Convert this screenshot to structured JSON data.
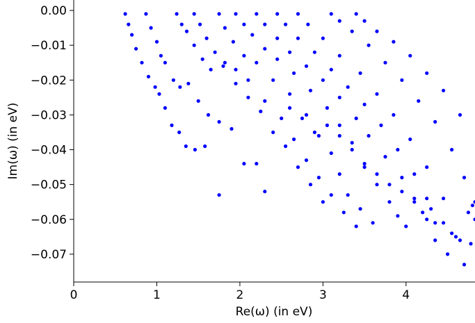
{
  "chart_data": {
    "type": "scatter",
    "xlabel": "Re(ω) (in eV)",
    "ylabel": "Im(ω) (in eV)",
    "xlim": [
      0,
      4.83
    ],
    "ylim": [
      -0.078,
      0.003
    ],
    "x_ticks": [
      0,
      1,
      2,
      3,
      4
    ],
    "x_tick_labels": [
      "0",
      "1",
      "2",
      "3",
      "4"
    ],
    "y_ticks": [
      0.0,
      -0.01,
      -0.02,
      -0.03,
      -0.04,
      -0.05,
      -0.06,
      -0.07
    ],
    "y_tick_labels": [
      "0.00",
      "−0.01",
      "−0.02",
      "−0.03",
      "−0.04",
      "−0.05",
      "−0.06",
      "−0.07"
    ],
    "grid": false,
    "legend": "none",
    "marker_color": "#0000ff",
    "branches": [
      {
        "x0": 0.62,
        "x1": 1.75,
        "y0": -0.001,
        "y1": -0.053
      },
      {
        "x0": 0.87,
        "x1": 2.3,
        "y0": -0.001,
        "y1": -0.052
      },
      {
        "x0": 1.24,
        "x1": 3.0,
        "y0": -0.001,
        "y1": -0.055
      },
      {
        "x0": 1.45,
        "x1": 3.4,
        "y0": -0.001,
        "y1": -0.062
      },
      {
        "x0": 1.75,
        "x1": 3.6,
        "y0": -0.001,
        "y1": -0.061
      },
      {
        "x0": 1.95,
        "x1": 4.0,
        "y0": -0.001,
        "y1": -0.062
      },
      {
        "x0": 2.2,
        "x1": 4.35,
        "y0": -0.001,
        "y1": -0.066
      },
      {
        "x0": 2.45,
        "x1": 4.5,
        "y0": -0.001,
        "y1": -0.07
      },
      {
        "x0": 2.7,
        "x1": 4.7,
        "y0": -0.001,
        "y1": -0.073
      },
      {
        "x0": 3.1,
        "x1": 4.83,
        "y0": -0.001,
        "y1": -0.06
      },
      {
        "x0": 3.4,
        "x1": 4.83,
        "y0": -0.001,
        "y1": -0.055
      }
    ],
    "points": [
      [
        0.62,
        -0.001
      ],
      [
        0.66,
        -0.004
      ],
      [
        0.7,
        -0.007
      ],
      [
        0.75,
        -0.011
      ],
      [
        0.82,
        -0.015
      ],
      [
        0.9,
        -0.019
      ],
      [
        0.98,
        -0.022
      ],
      [
        1.03,
        -0.024
      ],
      [
        1.1,
        -0.028
      ],
      [
        1.18,
        -0.033
      ],
      [
        1.27,
        -0.035
      ],
      [
        1.35,
        -0.039
      ],
      [
        1.46,
        -0.04
      ],
      [
        1.58,
        -0.039
      ],
      [
        1.75,
        -0.053
      ],
      [
        0.87,
        -0.001
      ],
      [
        0.93,
        -0.005
      ],
      [
        1.0,
        -0.009
      ],
      [
        1.05,
        -0.013
      ],
      [
        1.1,
        -0.015
      ],
      [
        1.2,
        -0.02
      ],
      [
        1.28,
        -0.022
      ],
      [
        1.38,
        -0.021
      ],
      [
        1.5,
        -0.026
      ],
      [
        1.62,
        -0.03
      ],
      [
        1.75,
        -0.032
      ],
      [
        1.9,
        -0.034
      ],
      [
        2.05,
        -0.044
      ],
      [
        2.2,
        -0.044
      ],
      [
        2.3,
        -0.052
      ],
      [
        1.24,
        -0.001
      ],
      [
        1.3,
        -0.004
      ],
      [
        1.36,
        -0.006
      ],
      [
        1.45,
        -0.01
      ],
      [
        1.55,
        -0.014
      ],
      [
        1.65,
        -0.017
      ],
      [
        1.8,
        -0.016
      ],
      [
        1.95,
        -0.021
      ],
      [
        2.1,
        -0.025
      ],
      [
        2.25,
        -0.029
      ],
      [
        2.4,
        -0.035
      ],
      [
        2.55,
        -0.039
      ],
      [
        2.7,
        -0.045
      ],
      [
        2.85,
        -0.05
      ],
      [
        3.0,
        -0.055
      ],
      [
        1.45,
        -0.001
      ],
      [
        1.52,
        -0.004
      ],
      [
        1.6,
        -0.008
      ],
      [
        1.7,
        -0.012
      ],
      [
        1.82,
        -0.015
      ],
      [
        1.95,
        -0.017
      ],
      [
        2.1,
        -0.02
      ],
      [
        2.3,
        -0.026
      ],
      [
        2.5,
        -0.031
      ],
      [
        2.65,
        -0.037
      ],
      [
        2.8,
        -0.043
      ],
      [
        2.95,
        -0.048
      ],
      [
        3.1,
        -0.053
      ],
      [
        3.25,
        -0.058
      ],
      [
        3.4,
        -0.062
      ],
      [
        1.75,
        -0.001
      ],
      [
        1.82,
        -0.005
      ],
      [
        1.92,
        -0.009
      ],
      [
        2.05,
        -0.013
      ],
      [
        2.2,
        -0.015
      ],
      [
        2.4,
        -0.02
      ],
      [
        2.6,
        -0.024
      ],
      [
        2.8,
        -0.03
      ],
      [
        2.95,
        -0.036
      ],
      [
        3.1,
        -0.041
      ],
      [
        3.2,
        -0.047
      ],
      [
        3.3,
        -0.053
      ],
      [
        3.45,
        -0.057
      ],
      [
        3.6,
        -0.061
      ],
      [
        1.95,
        -0.001
      ],
      [
        2.05,
        -0.004
      ],
      [
        2.15,
        -0.007
      ],
      [
        2.3,
        -0.011
      ],
      [
        2.45,
        -0.014
      ],
      [
        2.65,
        -0.018
      ],
      [
        2.85,
        -0.023
      ],
      [
        3.05,
        -0.028
      ],
      [
        3.2,
        -0.033
      ],
      [
        3.35,
        -0.038
      ],
      [
        3.5,
        -0.044
      ],
      [
        3.65,
        -0.05
      ],
      [
        3.8,
        -0.055
      ],
      [
        3.9,
        -0.059
      ],
      [
        4.0,
        -0.062
      ],
      [
        2.2,
        -0.001
      ],
      [
        2.3,
        -0.004
      ],
      [
        2.45,
        -0.008
      ],
      [
        2.6,
        -0.012
      ],
      [
        2.8,
        -0.016
      ],
      [
        3.0,
        -0.02
      ],
      [
        3.2,
        -0.025
      ],
      [
        3.4,
        -0.031
      ],
      [
        3.55,
        -0.036
      ],
      [
        3.75,
        -0.042
      ],
      [
        3.95,
        -0.048
      ],
      [
        4.1,
        -0.054
      ],
      [
        4.25,
        -0.06
      ],
      [
        4.35,
        -0.066
      ],
      [
        2.45,
        -0.001
      ],
      [
        2.55,
        -0.004
      ],
      [
        2.7,
        -0.008
      ],
      [
        2.9,
        -0.012
      ],
      [
        3.1,
        -0.017
      ],
      [
        3.3,
        -0.022
      ],
      [
        3.5,
        -0.027
      ],
      [
        3.7,
        -0.033
      ],
      [
        3.9,
        -0.04
      ],
      [
        4.1,
        -0.047
      ],
      [
        4.25,
        -0.054
      ],
      [
        4.35,
        -0.061
      ],
      [
        4.5,
        -0.07
      ],
      [
        2.7,
        -0.001
      ],
      [
        2.82,
        -0.004
      ],
      [
        3.0,
        -0.008
      ],
      [
        3.2,
        -0.013
      ],
      [
        3.45,
        -0.018
      ],
      [
        3.65,
        -0.024
      ],
      [
        3.85,
        -0.03
      ],
      [
        4.05,
        -0.037
      ],
      [
        4.25,
        -0.045
      ],
      [
        4.45,
        -0.054
      ],
      [
        4.6,
        -0.065
      ],
      [
        4.7,
        -0.073
      ],
      [
        3.1,
        -0.001
      ],
      [
        3.2,
        -0.003
      ],
      [
        3.35,
        -0.006
      ],
      [
        3.55,
        -0.01
      ],
      [
        3.75,
        -0.015
      ],
      [
        3.95,
        -0.02
      ],
      [
        4.15,
        -0.026
      ],
      [
        4.35,
        -0.032
      ],
      [
        4.55,
        -0.04
      ],
      [
        4.7,
        -0.048
      ],
      [
        4.83,
        -0.06
      ],
      [
        3.4,
        -0.001
      ],
      [
        3.5,
        -0.003
      ],
      [
        3.65,
        -0.006
      ],
      [
        3.85,
        -0.009
      ],
      [
        4.05,
        -0.013
      ],
      [
        4.25,
        -0.018
      ],
      [
        4.45,
        -0.023
      ],
      [
        4.65,
        -0.03
      ],
      [
        4.83,
        -0.055
      ],
      [
        2.6,
        -0.028
      ],
      [
        2.75,
        -0.031
      ],
      [
        2.9,
        -0.035
      ],
      [
        3.05,
        -0.033
      ],
      [
        3.2,
        -0.036
      ],
      [
        3.35,
        -0.04
      ],
      [
        3.5,
        -0.045
      ],
      [
        3.65,
        -0.047
      ],
      [
        3.8,
        -0.05
      ],
      [
        3.95,
        -0.052
      ],
      [
        4.1,
        -0.055
      ],
      [
        4.2,
        -0.058
      ],
      [
        4.3,
        -0.057
      ],
      [
        4.45,
        -0.061
      ],
      [
        4.55,
        -0.064
      ],
      [
        4.65,
        -0.066
      ],
      [
        4.75,
        -0.058
      ],
      [
        4.8,
        -0.056
      ],
      [
        4.78,
        -0.067
      ]
    ]
  }
}
